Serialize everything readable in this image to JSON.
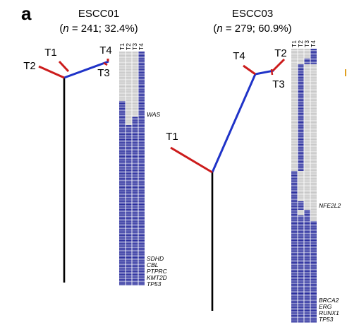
{
  "figure": {
    "panel_letter": "a",
    "trees": [
      {
        "title": "ESCC01",
        "subtitle_n": "n",
        "subtitle_rest": " = 241; 32.4%)",
        "nodes": [
          "T1",
          "T2",
          "T3",
          "T4"
        ],
        "matrix_columns": [
          "T1",
          "T2",
          "T3",
          "T4"
        ],
        "genes": [
          "WAS",
          "SDHD",
          "CBL",
          "PTPRC",
          "KMT2D",
          "TP53"
        ]
      },
      {
        "title": "ESCC03",
        "subtitle_n": "n",
        "subtitle_rest": " = 279; 60.9%)",
        "nodes": [
          "T1",
          "T2",
          "T3",
          "T4"
        ],
        "matrix_columns": [
          "T1",
          "T2",
          "T3",
          "T4"
        ],
        "genes": [
          "NFE2L2",
          "BRCA2",
          "ERG",
          "RUNX1",
          "TP53"
        ]
      }
    ],
    "colors": {
      "trunk": "#000000",
      "shared_branch": "#1f33c8",
      "private_branch": "#cc1c1c",
      "mutation_present": "#2b2f9e",
      "mutation_absent": "#c8c8c8"
    }
  }
}
